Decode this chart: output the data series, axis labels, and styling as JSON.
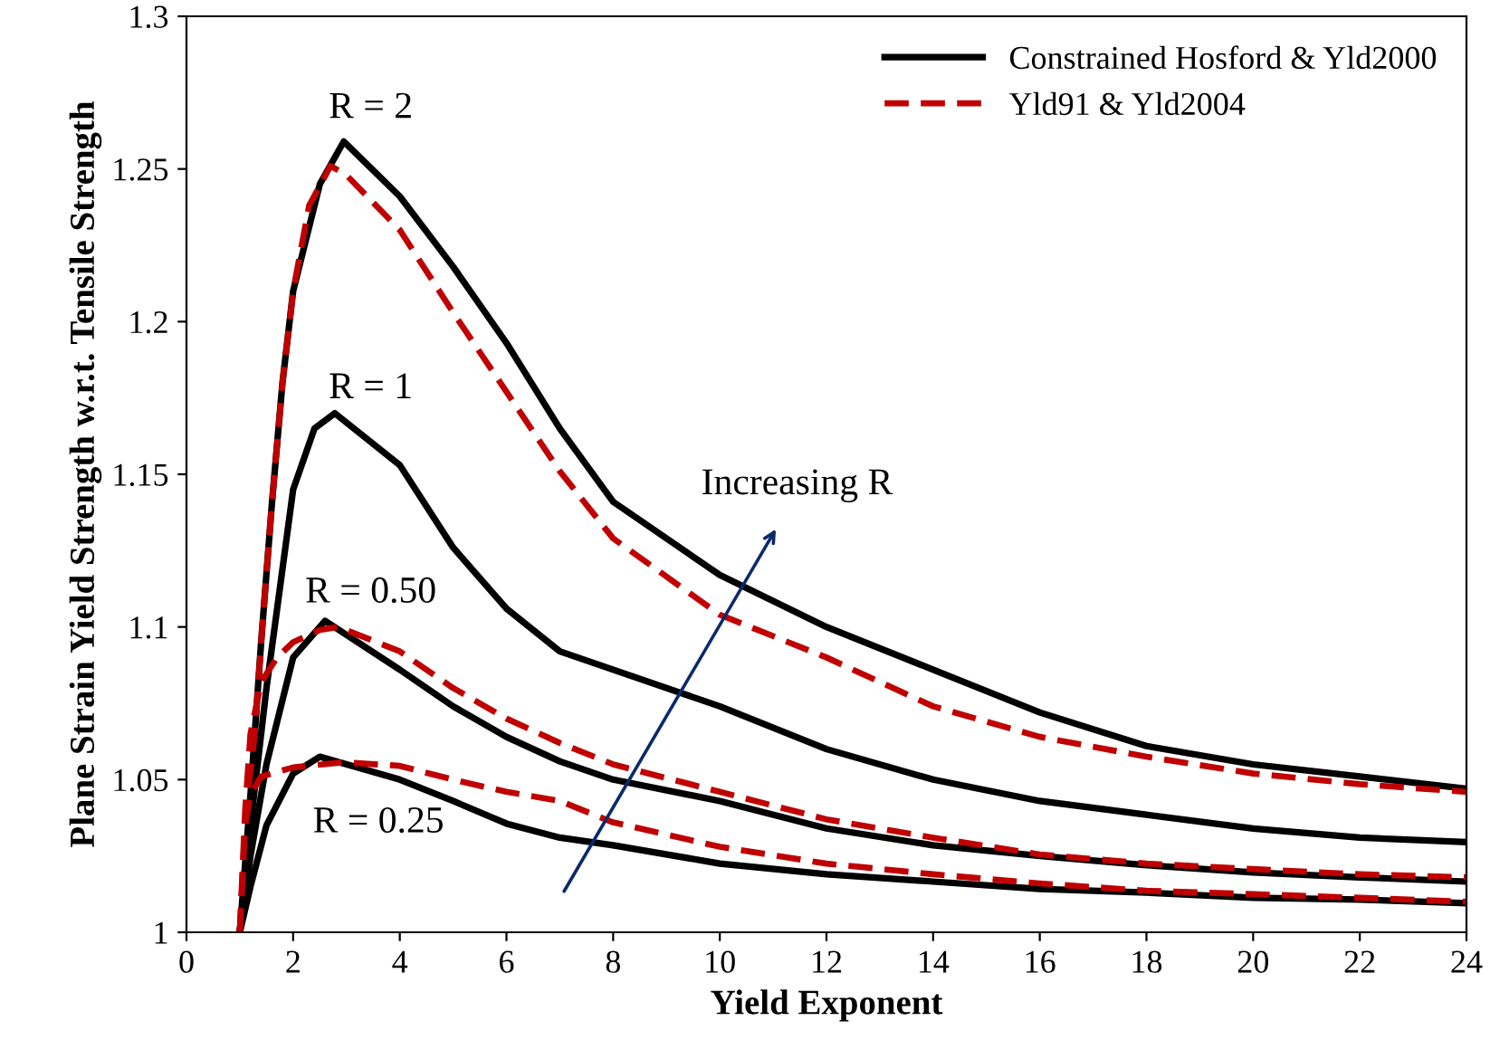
{
  "chart_data": {
    "type": "line",
    "xlabel": "Yield Exponent",
    "ylabel": "Plane Strain Yield Strength w.r.t. Tensile Strength",
    "xlim": [
      0,
      24
    ],
    "xticks": [
      0,
      2,
      4,
      6,
      8,
      10,
      12,
      14,
      16,
      18,
      20,
      22,
      24
    ],
    "ylim": [
      1,
      1.3
    ],
    "yticks": [
      1,
      1.05,
      1.1,
      1.15,
      1.2,
      1.25,
      1.3
    ],
    "grid": false,
    "legend": "top right",
    "marker": "none",
    "series": [
      {
        "name": "Constrained Hosford & Yld2000",
        "color": "#000000",
        "line_style": "solid",
        "x": [
          1,
          1.2,
          1.4,
          1.6,
          1.8,
          2,
          2.5,
          2.95,
          4,
          5,
          6,
          7,
          8,
          10,
          12,
          14,
          16,
          18,
          20,
          22,
          24
        ],
        "values": [
          1,
          1.045,
          1.095,
          1.14,
          1.18,
          1.21,
          1.245,
          1.259,
          1.241,
          1.218,
          1.193,
          1.165,
          1.141,
          1.117,
          1.1,
          1.086,
          1.072,
          1.061,
          1.055,
          1.051,
          1.047
        ]
      },
      {
        "name": "Yld91 & Yld2004",
        "color": "#c00000",
        "line_style": "dashed",
        "x": [
          1,
          1.2,
          1.4,
          1.6,
          1.8,
          2,
          2.3,
          2.7,
          3,
          4,
          5,
          6,
          7,
          8,
          10,
          12,
          14,
          16,
          18,
          20,
          22,
          24
        ],
        "values": [
          1,
          1.045,
          1.095,
          1.14,
          1.18,
          1.21,
          1.238,
          1.251,
          1.248,
          1.23,
          1.203,
          1.177,
          1.151,
          1.129,
          1.104,
          1.09,
          1.074,
          1.064,
          1.0575,
          1.052,
          1.0485,
          1.046
        ]
      },
      {
        "color": "#000000",
        "line_style": "solid",
        "x": [
          1,
          1.2,
          1.5,
          2,
          2.4,
          2.78,
          4,
          5,
          6,
          7,
          8,
          10,
          12,
          14,
          16,
          18,
          20,
          22,
          24
        ],
        "values": [
          1,
          1.035,
          1.08,
          1.145,
          1.165,
          1.17,
          1.153,
          1.126,
          1.106,
          1.092,
          1.086,
          1.074,
          1.06,
          1.05,
          1.043,
          1.0385,
          1.034,
          1.031,
          1.0295
        ]
      },
      {
        "color": "#000000",
        "line_style": "solid",
        "x": [
          1,
          1.2,
          1.5,
          2,
          2.6,
          4,
          5,
          6,
          7,
          8,
          10,
          12,
          14,
          16,
          18,
          20,
          22,
          24
        ],
        "values": [
          1,
          1.025,
          1.055,
          1.09,
          1.102,
          1.086,
          1.074,
          1.064,
          1.056,
          1.05,
          1.043,
          1.034,
          1.0285,
          1.025,
          1.022,
          1.0196,
          1.018,
          1.0166
        ]
      },
      {
        "color": "#c00000",
        "line_style": "dashed",
        "x": [
          1,
          1.1,
          1.2,
          1.4,
          1.7,
          2,
          2.5,
          2.85,
          4,
          5,
          6,
          7,
          8,
          10,
          12,
          14,
          16,
          18,
          20,
          22,
          24
        ],
        "values": [
          1,
          1.04,
          1.065,
          1.082,
          1.09,
          1.095,
          1.099,
          1.1,
          1.092,
          1.08,
          1.07,
          1.062,
          1.055,
          1.046,
          1.037,
          1.031,
          1.0255,
          1.0225,
          1.0207,
          1.019,
          1.018
        ]
      },
      {
        "color": "#000000",
        "line_style": "solid",
        "x": [
          1,
          1.2,
          1.5,
          2,
          2.5,
          4,
          5,
          6,
          7,
          8,
          10,
          12,
          14,
          16,
          18,
          20,
          22,
          24
        ],
        "values": [
          1,
          1.015,
          1.035,
          1.052,
          1.0575,
          1.05,
          1.043,
          1.0356,
          1.031,
          1.0285,
          1.0225,
          1.019,
          1.0166,
          1.0142,
          1.013,
          1.0113,
          1.0107,
          1.0095
        ]
      },
      {
        "color": "#c00000",
        "line_style": "dashed",
        "x": [
          1,
          1.1,
          1.2,
          1.4,
          2,
          2.95,
          4,
          5,
          6,
          7,
          8,
          10,
          12,
          14,
          16,
          18,
          20,
          22,
          24
        ],
        "values": [
          1,
          1.035,
          1.045,
          1.051,
          1.054,
          1.0557,
          1.0545,
          1.05,
          1.046,
          1.043,
          1.036,
          1.028,
          1.0225,
          1.019,
          1.016,
          1.0136,
          1.0125,
          1.0113,
          1.01
        ]
      }
    ],
    "annotations": [
      "R = 2",
      "R = 1",
      "R = 0.50",
      "R = 0.25",
      "Increasing R"
    ]
  }
}
